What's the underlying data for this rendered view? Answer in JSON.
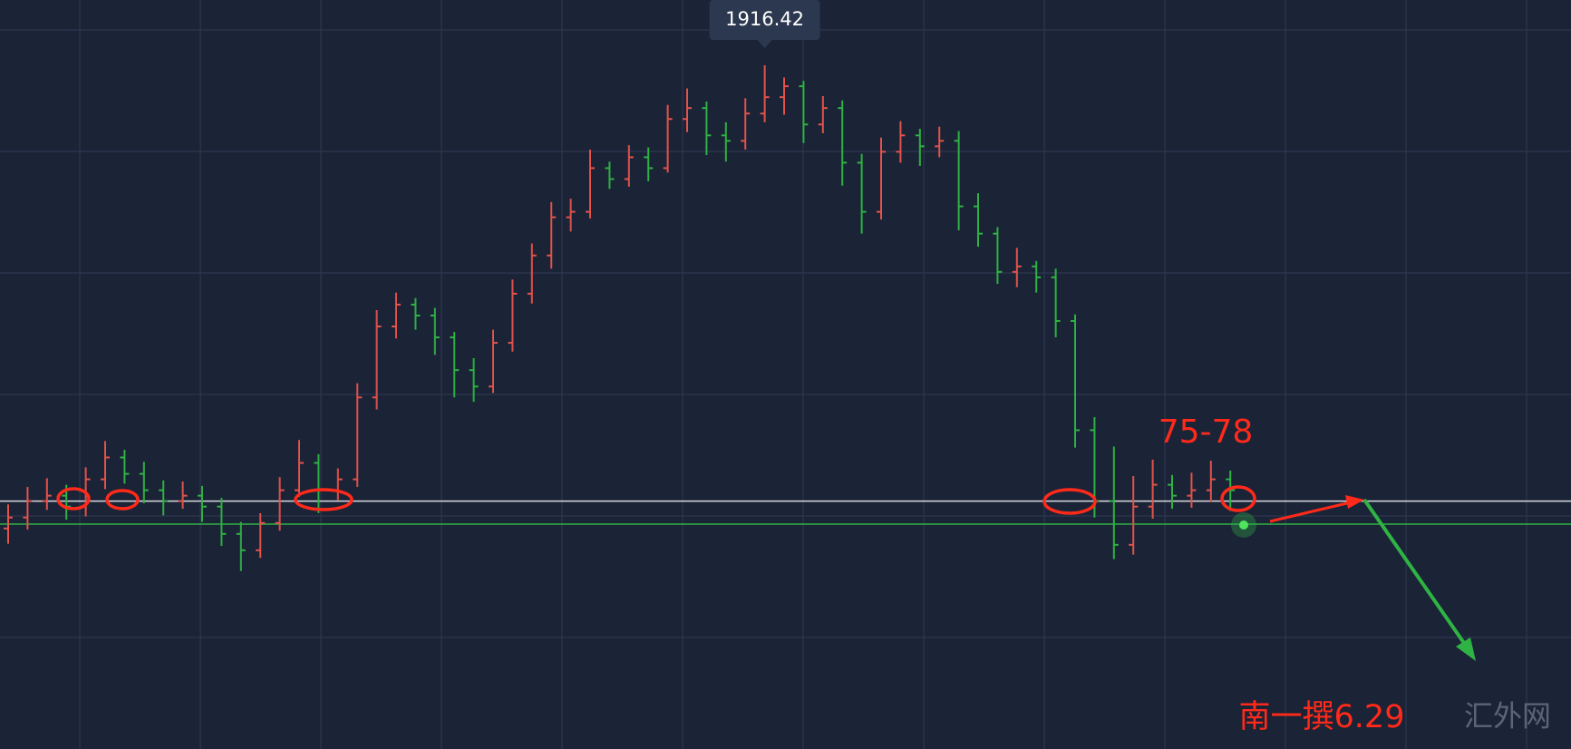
{
  "chart_data": {
    "type": "ohlc",
    "ylim": [
      1853.8,
      1922.4
    ],
    "up_color": "#e5534b",
    "down_color": "#2fb344",
    "open": [
      1874.0,
      1875.0,
      1876.5,
      1877.0,
      1876.0,
      1878.5,
      1880.5,
      1879.0,
      1877.5,
      1876.5,
      1877.0,
      1876.0,
      1873.5,
      1872.0,
      1874.5,
      1877.5,
      1880.0,
      1877.5,
      1878.5,
      1886.0,
      1892.5,
      1894.5,
      1893.5,
      1891.5,
      1888.5,
      1887.0,
      1891.0,
      1895.5,
      1899.0,
      1902.5,
      1903.0,
      1907.0,
      1906.0,
      1908.0,
      1907.0,
      1911.5,
      1912.5,
      1910.0,
      1909.5,
      1912.0,
      1913.5,
      1914.5,
      1911.0,
      1912.5,
      1907.5,
      1903.0,
      1908.5,
      1910.0,
      1909.0,
      1909.5,
      1903.5,
      1901.0,
      1897.5,
      1898.0,
      1897.0,
      1893.0,
      1883.0,
      1876.5,
      1872.5,
      1876.0,
      1878.0,
      1877.0,
      1877.5,
      1878.5
    ],
    "high": [
      1876.2,
      1877.8,
      1878.6,
      1878.0,
      1879.6,
      1882.0,
      1881.2,
      1880.1,
      1878.4,
      1878.3,
      1877.9,
      1876.8,
      1874.6,
      1875.4,
      1878.7,
      1882.1,
      1880.8,
      1879.5,
      1887.3,
      1894.0,
      1895.6,
      1895.1,
      1894.2,
      1892.0,
      1889.6,
      1892.2,
      1896.8,
      1900.1,
      1903.9,
      1904.2,
      1908.7,
      1907.6,
      1909.1,
      1908.9,
      1912.8,
      1914.3,
      1913.1,
      1911.2,
      1913.4,
      1916.42,
      1915.3,
      1915.0,
      1913.6,
      1913.2,
      1908.3,
      1909.8,
      1911.3,
      1910.6,
      1910.8,
      1910.4,
      1904.7,
      1901.6,
      1899.7,
      1898.5,
      1897.8,
      1893.6,
      1884.2,
      1881.5,
      1878.8,
      1880.3,
      1878.9,
      1879.1,
      1880.2,
      1879.3
    ],
    "low": [
      1872.6,
      1873.9,
      1875.7,
      1874.8,
      1875.1,
      1877.6,
      1878.1,
      1876.3,
      1875.2,
      1875.8,
      1874.6,
      1872.4,
      1870.1,
      1871.3,
      1873.8,
      1876.9,
      1875.4,
      1876.6,
      1877.8,
      1884.9,
      1891.4,
      1892.2,
      1889.9,
      1886.0,
      1885.6,
      1886.4,
      1890.2,
      1894.6,
      1897.8,
      1901.2,
      1902.4,
      1905.1,
      1905.3,
      1905.8,
      1906.6,
      1910.3,
      1908.2,
      1907.6,
      1908.7,
      1911.2,
      1911.9,
      1909.3,
      1910.2,
      1905.4,
      1901.0,
      1902.3,
      1907.5,
      1907.2,
      1908.0,
      1901.3,
      1899.8,
      1896.4,
      1896.1,
      1895.6,
      1891.5,
      1881.4,
      1875.0,
      1871.2,
      1871.6,
      1874.9,
      1875.8,
      1875.9,
      1876.4,
      1875.6
    ],
    "close": [
      1875.0,
      1876.5,
      1877.0,
      1876.0,
      1878.5,
      1880.5,
      1879.0,
      1877.5,
      1876.5,
      1877.0,
      1876.0,
      1873.5,
      1872.0,
      1874.5,
      1877.5,
      1880.0,
      1877.5,
      1878.5,
      1886.0,
      1892.5,
      1894.5,
      1893.5,
      1891.5,
      1888.5,
      1887.0,
      1891.0,
      1895.5,
      1899.0,
      1902.5,
      1903.0,
      1907.0,
      1906.0,
      1908.0,
      1907.0,
      1911.5,
      1912.5,
      1910.0,
      1909.5,
      1912.0,
      1913.5,
      1914.5,
      1911.0,
      1912.5,
      1907.5,
      1903.0,
      1908.5,
      1910.0,
      1909.0,
      1909.5,
      1903.5,
      1901.0,
      1897.5,
      1898.0,
      1897.0,
      1893.0,
      1883.0,
      1876.5,
      1872.5,
      1876.0,
      1878.0,
      1877.0,
      1877.5,
      1878.5,
      1877.5
    ],
    "reference_lines": [
      {
        "value": 1876.5,
        "color": "#d9dbe0"
      },
      {
        "value": 1874.4,
        "color": "#2fb344"
      }
    ],
    "annotation": "75-78",
    "signature": "南一撰6.29",
    "watermark": "汇外网"
  }
}
